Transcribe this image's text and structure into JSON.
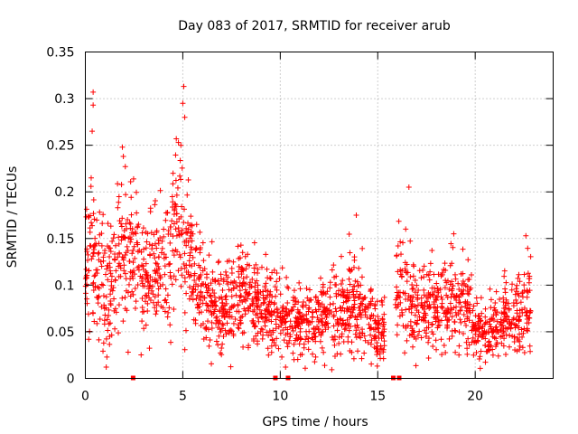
{
  "chart_data": {
    "type": "scatter",
    "title": "Day 083 of 2017, SRMTID for receiver arub",
    "xlabel": "GPS time / hours",
    "ylabel": "SRMTID / TECUs",
    "xlim": [
      0,
      24
    ],
    "ylim": [
      0,
      0.35
    ],
    "xticks": [
      0,
      5,
      10,
      15,
      20
    ],
    "xtick_labels": [
      "0",
      "5",
      "10",
      "15",
      "20"
    ],
    "yticks": [
      0,
      0.05,
      0.1,
      0.15,
      0.2,
      0.25,
      0.3,
      0.35
    ],
    "ytick_labels": [
      "0",
      "0.05",
      "0.1",
      "0.15",
      "0.2",
      "0.25",
      "0.3",
      "0.35"
    ],
    "grid": true,
    "marker": "plus",
    "color": "#ff0000",
    "series_profile": [
      {
        "x": 0.0,
        "y": 0.1
      },
      {
        "x": 0.3,
        "y": 0.14
      },
      {
        "x": 0.6,
        "y": 0.11
      },
      {
        "x": 1.0,
        "y": 0.09
      },
      {
        "x": 1.5,
        "y": 0.11
      },
      {
        "x": 2.0,
        "y": 0.14
      },
      {
        "x": 2.5,
        "y": 0.12
      },
      {
        "x": 3.0,
        "y": 0.1
      },
      {
        "x": 3.5,
        "y": 0.11
      },
      {
        "x": 4.0,
        "y": 0.12
      },
      {
        "x": 4.5,
        "y": 0.15
      },
      {
        "x": 5.0,
        "y": 0.17
      },
      {
        "x": 5.5,
        "y": 0.11
      },
      {
        "x": 6.0,
        "y": 0.09
      },
      {
        "x": 6.5,
        "y": 0.08
      },
      {
        "x": 7.0,
        "y": 0.07
      },
      {
        "x": 7.5,
        "y": 0.08
      },
      {
        "x": 8.0,
        "y": 0.085
      },
      {
        "x": 8.5,
        "y": 0.08
      },
      {
        "x": 9.0,
        "y": 0.075
      },
      {
        "x": 9.5,
        "y": 0.07
      },
      {
        "x": 10.0,
        "y": 0.065
      },
      {
        "x": 10.5,
        "y": 0.065
      },
      {
        "x": 11.0,
        "y": 0.06
      },
      {
        "x": 11.5,
        "y": 0.06
      },
      {
        "x": 12.0,
        "y": 0.065
      },
      {
        "x": 12.5,
        "y": 0.07
      },
      {
        "x": 13.0,
        "y": 0.075
      },
      {
        "x": 13.5,
        "y": 0.08
      },
      {
        "x": 14.0,
        "y": 0.075
      },
      {
        "x": 14.5,
        "y": 0.065
      },
      {
        "x": 15.0,
        "y": 0.05
      },
      {
        "x": 15.3,
        "y": 0.055
      },
      {
        "x": 16.0,
        "y": 0.1
      },
      {
        "x": 16.5,
        "y": 0.09
      },
      {
        "x": 17.0,
        "y": 0.07
      },
      {
        "x": 17.5,
        "y": 0.075
      },
      {
        "x": 18.0,
        "y": 0.08
      },
      {
        "x": 18.5,
        "y": 0.08
      },
      {
        "x": 19.0,
        "y": 0.085
      },
      {
        "x": 19.5,
        "y": 0.09
      },
      {
        "x": 20.0,
        "y": 0.055
      },
      {
        "x": 20.5,
        "y": 0.05
      },
      {
        "x": 21.0,
        "y": 0.055
      },
      {
        "x": 21.5,
        "y": 0.06
      },
      {
        "x": 22.0,
        "y": 0.065
      },
      {
        "x": 22.5,
        "y": 0.07
      },
      {
        "x": 22.8,
        "y": 0.08
      }
    ],
    "peak_values": [
      {
        "x": 0.4,
        "y": 0.307
      },
      {
        "x": 0.4,
        "y": 0.293
      },
      {
        "x": 0.35,
        "y": 0.265
      },
      {
        "x": 0.3,
        "y": 0.215
      },
      {
        "x": 1.9,
        "y": 0.248
      },
      {
        "x": 1.95,
        "y": 0.238
      },
      {
        "x": 5.05,
        "y": 0.313
      },
      {
        "x": 5.0,
        "y": 0.295
      },
      {
        "x": 5.1,
        "y": 0.28
      },
      {
        "x": 4.9,
        "y": 0.25
      },
      {
        "x": 4.5,
        "y": 0.22
      },
      {
        "x": 13.9,
        "y": 0.175
      },
      {
        "x": 16.6,
        "y": 0.205
      },
      {
        "x": 22.6,
        "y": 0.153
      },
      {
        "x": 18.9,
        "y": 0.155
      }
    ],
    "zero_values": [
      {
        "x": 2.45,
        "y": 0
      },
      {
        "x": 9.75,
        "y": 0
      },
      {
        "x": 10.4,
        "y": 0
      },
      {
        "x": 15.8,
        "y": 0
      },
      {
        "x": 16.1,
        "y": 0
      }
    ],
    "gaps": [
      [
        15.35,
        15.9
      ],
      [
        22.9,
        24.0
      ]
    ]
  }
}
